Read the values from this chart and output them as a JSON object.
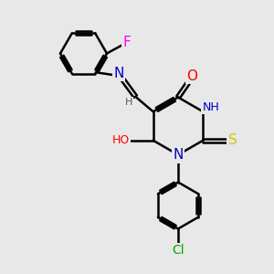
{
  "bg_color": "#e8e8e8",
  "bond_color": "#000000",
  "bond_width": 1.8,
  "atom_colors": {
    "N": "#0000cc",
    "O": "#ff0000",
    "S": "#cccc00",
    "F": "#ff00ff",
    "Cl": "#00aa00",
    "C": "#000000",
    "H": "#555555"
  },
  "font_size": 9
}
